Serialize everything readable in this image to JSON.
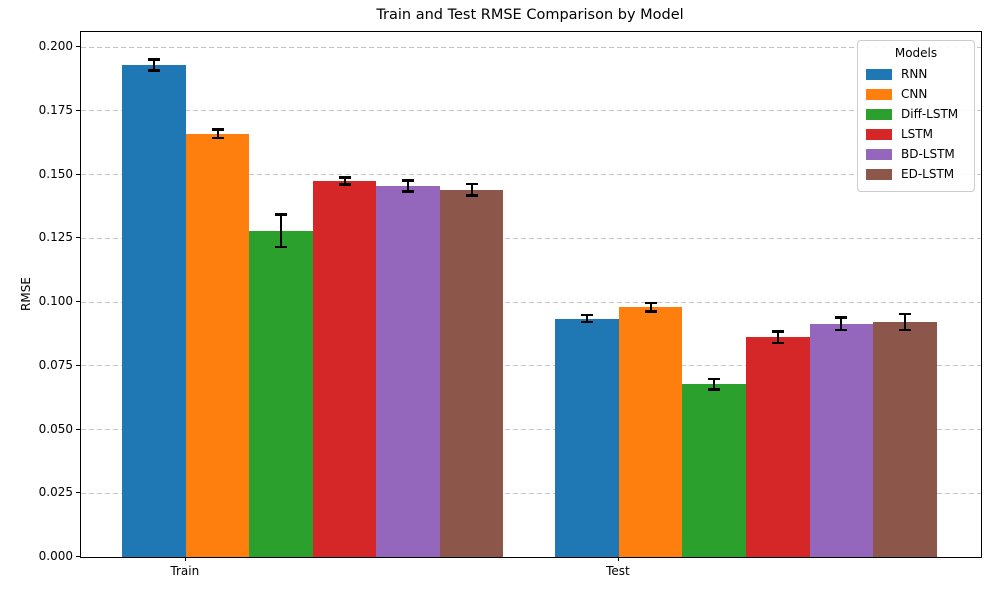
{
  "chart_data": {
    "type": "bar",
    "title": "Train and Test RMSE Comparison by Model",
    "ylabel": "RMSE",
    "legend_title": "Models",
    "legend_position": "upper right",
    "grid": "dashed horizontal",
    "categories": [
      "Train",
      "Test"
    ],
    "series": [
      {
        "name": "RNN",
        "color": "#1f77b4",
        "values": [
          0.193,
          0.0935
        ],
        "errors": [
          0.0022,
          0.0015
        ]
      },
      {
        "name": "CNN",
        "color": "#ff7f0e",
        "values": [
          0.166,
          0.098
        ],
        "errors": [
          0.0018,
          0.0018
        ]
      },
      {
        "name": "Diff-LSTM",
        "color": "#2ca02c",
        "values": [
          0.128,
          0.0678
        ],
        "errors": [
          0.0065,
          0.0022
        ]
      },
      {
        "name": "LSTM",
        "color": "#d62728",
        "values": [
          0.1475,
          0.0862
        ],
        "errors": [
          0.0015,
          0.0023
        ]
      },
      {
        "name": "BD-LSTM",
        "color": "#9467bd",
        "values": [
          0.1455,
          0.0915
        ],
        "errors": [
          0.0023,
          0.0026
        ]
      },
      {
        "name": "ED-LSTM",
        "color": "#8c564b",
        "values": [
          0.144,
          0.0922
        ],
        "errors": [
          0.0023,
          0.0032
        ]
      }
    ],
    "yticks": {
      "values": [
        0.0,
        0.025,
        0.05,
        0.075,
        0.1,
        0.125,
        0.15,
        0.175,
        0.2
      ],
      "labels": [
        "0.000",
        "0.025",
        "0.050",
        "0.075",
        "0.100",
        "0.125",
        "0.150",
        "0.175",
        "0.200"
      ]
    },
    "ylim": [
      0.0,
      0.2059
    ],
    "error_bar_color": "#000000"
  }
}
